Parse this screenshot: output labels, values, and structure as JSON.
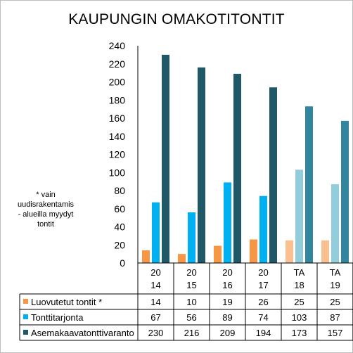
{
  "chart_data": {
    "type": "table",
    "title": "KAUPUNGIN  OMAKOTITONTIT",
    "note": "* vain uudisrakentamis - alueilla myydyt tontit",
    "categories": [
      [
        "20",
        "14"
      ],
      [
        "20",
        "15"
      ],
      [
        "20",
        "16"
      ],
      [
        "20",
        "17"
      ],
      [
        "TA",
        "18"
      ],
      [
        "TA",
        "19"
      ]
    ],
    "y_ticks": [
      "0",
      "20",
      "40",
      "60",
      "80",
      "100",
      "120",
      "140",
      "160",
      "180",
      "200",
      "220",
      "240"
    ],
    "ylim": [
      0,
      240
    ],
    "grid": false,
    "legend": "table rows below chart",
    "series": [
      {
        "name": "Luovutetut tontit  *",
        "values": [
          14,
          10,
          19,
          26,
          25,
          25
        ],
        "color": "#f79646",
        "forecast_color": "#fac090"
      },
      {
        "name": "Tonttitarjonta",
        "values": [
          67,
          56,
          89,
          74,
          103,
          87
        ],
        "color": "#00b0f0",
        "forecast_color": "#92cddc"
      },
      {
        "name": "Asemakaavatonttivaranto",
        "values": [
          230,
          216,
          209,
          194,
          173,
          157
        ],
        "color": "#215868",
        "forecast_color": "#31859c"
      }
    ],
    "forecast_from_index": 4
  }
}
